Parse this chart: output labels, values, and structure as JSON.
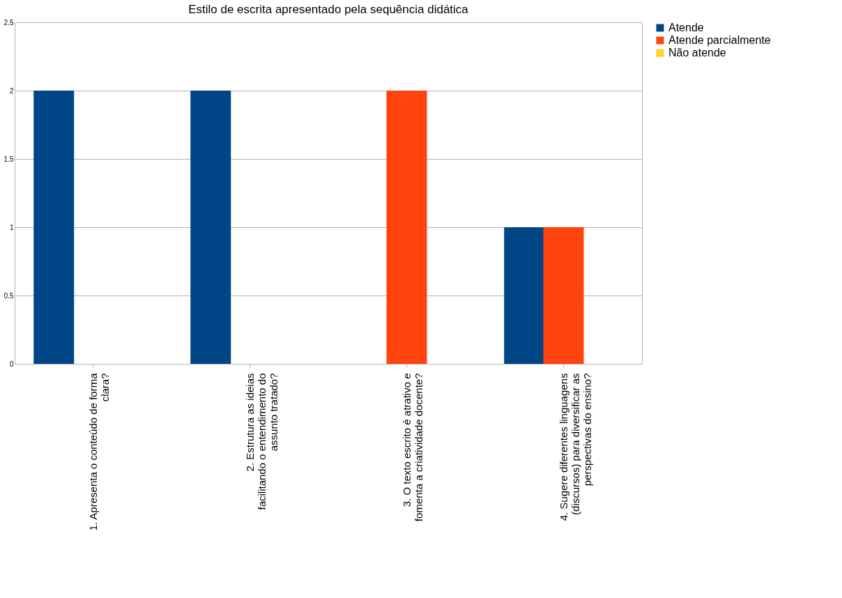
{
  "chart_data": {
    "type": "bar",
    "title": "Estilo de escrita apresentado pela sequência didática",
    "categories": [
      "1. Apresenta o conteúdo de forma clara?",
      "2. Estrutura as ideias facilitando o entendimento do assunto tratado?",
      "3. O texto escrito é atrativo e fomenta a criatividade docente?",
      "4. Sugere diferentes linguagens (discursos) para diversificar as perspectivas do ensino?"
    ],
    "series": [
      {
        "name": "Atende",
        "color": "#004586",
        "values": [
          2,
          2,
          0,
          1
        ]
      },
      {
        "name": "Atende parcialmente",
        "color": "#ff420e",
        "values": [
          0,
          0,
          2,
          1
        ]
      },
      {
        "name": "Não atende",
        "color": "#ffd320",
        "values": [
          0,
          0,
          0,
          0
        ]
      }
    ],
    "ylim": [
      0,
      2.5
    ],
    "yticks": [
      0,
      0.5,
      1,
      1.5,
      2,
      2.5
    ],
    "grid": "y",
    "legend": "right"
  }
}
